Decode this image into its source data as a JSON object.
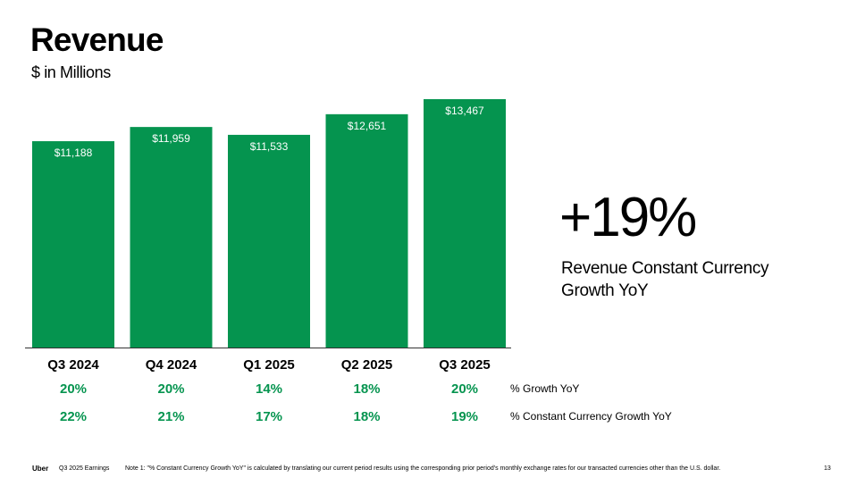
{
  "header": {
    "title": "Revenue",
    "subtitle": "$ in Millions"
  },
  "chart_data": {
    "type": "bar",
    "title": "Revenue",
    "ylabel": "$ in Millions",
    "ylim": [
      0,
      14000
    ],
    "categories": [
      "Q3 2024",
      "Q4 2024",
      "Q1 2025",
      "Q2 2025",
      "Q3 2025"
    ],
    "values": [
      11188,
      11959,
      11533,
      12651,
      13467
    ],
    "value_labels": [
      "$11,188",
      "$11,959",
      "$11,533",
      "$12,651",
      "$13,467"
    ],
    "growth_rows": [
      {
        "label": "% Growth YoY",
        "values": [
          "20%",
          "20%",
          "14%",
          "18%",
          "20%"
        ]
      },
      {
        "label": "% Constant Currency Growth YoY",
        "values": [
          "22%",
          "21%",
          "17%",
          "18%",
          "19%"
        ]
      }
    ],
    "colors": {
      "bar": "#05944f",
      "growth_text": "#05944f",
      "axis": "#333333"
    }
  },
  "kpi": {
    "value": "+19%",
    "label": "Revenue Constant Currency Growth YoY"
  },
  "footer": {
    "brand": "Uber",
    "period": "Q3 2025 Earnings",
    "note": "Note 1: \"% Constant Currency Growth YoY\" is calculated by translating our current period results using the corresponding prior period's monthly exchange rates for our transacted currencies other than the U.S. dollar.",
    "page": "13"
  }
}
